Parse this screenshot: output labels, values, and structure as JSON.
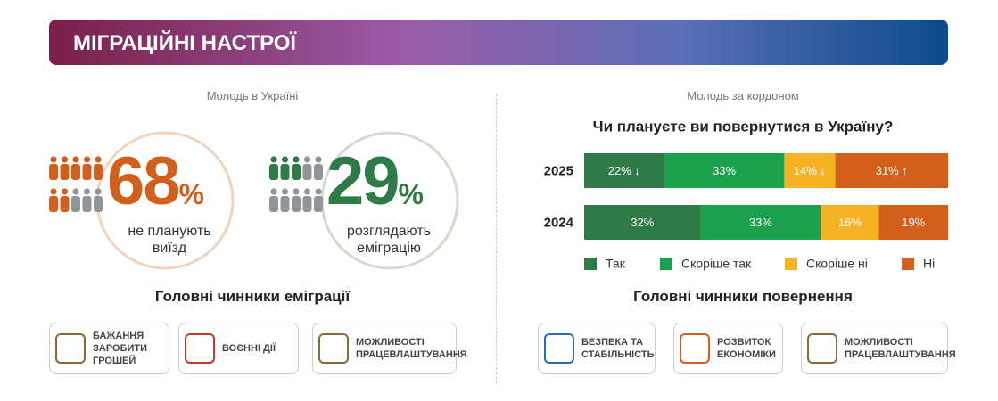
{
  "header": {
    "title": "МІГРАЦІЙНІ НАСТРОЇ"
  },
  "left": {
    "subtitle": "Молодь в Україні",
    "stats": [
      {
        "value": 68,
        "unit": "%",
        "label": "не планують виїзд"
      },
      {
        "value": 29,
        "unit": "%",
        "label": "розглядають еміграцію"
      }
    ],
    "factors_title": "Головні чинники еміграції",
    "factors": [
      "БАЖАННЯ ЗАРОБИТИ ГРОШЕЙ",
      "ВОЄННІ ДІЇ",
      "МОЖЛИВОСТІ ПРАЦЕВЛАШТУВАННЯ"
    ]
  },
  "right": {
    "subtitle": "Молодь за кордоном",
    "factors_title": "Головні чинники повернення",
    "factors": [
      "БЕЗПЕКА ТА СТАБІЛЬНІСТЬ",
      "РОЗВИТОК ЕКОНОМІКИ",
      "МОЖЛИВОСТІ ПРАЦЕВЛАШТУВАННЯ"
    ]
  },
  "chart_data": {
    "type": "stacked-bar",
    "orientation": "horizontal",
    "title": "Чи плануєте ви повернутися в Україну?",
    "categories": [
      "2025",
      "2024"
    ],
    "xlim": [
      0,
      100
    ],
    "series": [
      {
        "name": "Так",
        "color": "#2f7b47",
        "values": [
          22,
          32
        ],
        "value_labels": [
          "22% ↓",
          "32%"
        ]
      },
      {
        "name": "Скоріше так",
        "color": "#1ba04e",
        "values": [
          33,
          33
        ],
        "value_labels": [
          "33%",
          "33%"
        ]
      },
      {
        "name": "Скоріше ні",
        "color": "#f6b326",
        "values": [
          14,
          16
        ],
        "value_labels": [
          "14% ↓",
          "16%"
        ]
      },
      {
        "name": "Ні",
        "color": "#d2601c",
        "values": [
          31,
          19
        ],
        "value_labels": [
          "31% ↑",
          "19%"
        ]
      }
    ]
  }
}
